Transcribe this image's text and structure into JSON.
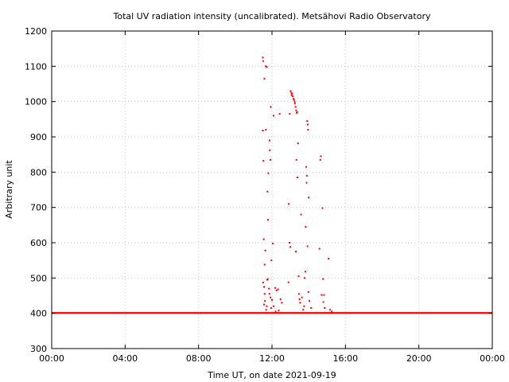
{
  "chart_data": {
    "type": "scatter",
    "title": "Total UV radiation intensity (uncalibrated). Metsähovi Radio Observatory",
    "xlabel": "Time UT, on date 2021-09-19",
    "ylabel": "Arbitrary unit",
    "xlim": [
      "00:00",
      "24:00"
    ],
    "ylim": [
      300,
      1200
    ],
    "x_ticks": [
      "00:00",
      "04:00",
      "08:00",
      "12:00",
      "16:00",
      "20:00",
      "00:00"
    ],
    "y_ticks": [
      "300",
      "400",
      "500",
      "600",
      "700",
      "800",
      "900",
      "1000",
      "1100",
      "1200"
    ],
    "grid": true,
    "legend": "none",
    "colors": {
      "points": "#ff0000",
      "axes": "#000000",
      "grid": "#cccccc"
    },
    "series": [
      {
        "baseline": {
          "value": 401,
          "x_range": [
            "00:00",
            "24:00"
          ]
        },
        "points": [
          [
            "11:30",
            1125
          ],
          [
            "11:31",
            1115
          ],
          [
            "11:35",
            1065
          ],
          [
            "11:39",
            1100
          ],
          [
            "11:43",
            1098
          ],
          [
            "11:30",
            918
          ],
          [
            "11:32",
            832
          ],
          [
            "11:40",
            920
          ],
          [
            "11:45",
            745
          ],
          [
            "11:48",
            797
          ],
          [
            "11:52",
            890
          ],
          [
            "11:53",
            862
          ],
          [
            "11:56",
            985
          ],
          [
            "11:55",
            835
          ],
          [
            "12:05",
            960
          ],
          [
            "12:25",
            965
          ],
          [
            "11:33",
            610
          ],
          [
            "11:38",
            578
          ],
          [
            "11:36",
            538
          ],
          [
            "11:47",
            665
          ],
          [
            "11:58",
            550
          ],
          [
            "12:03",
            598
          ],
          [
            "11:31",
            487
          ],
          [
            "11:34",
            475
          ],
          [
            "11:36",
            455
          ],
          [
            "11:44",
            495
          ],
          [
            "11:46",
            497
          ],
          [
            "11:50",
            470
          ],
          [
            "11:52",
            455
          ],
          [
            "11:55",
            445
          ],
          [
            "12:00",
            438
          ],
          [
            "12:05",
            420
          ],
          [
            "12:10",
            472
          ],
          [
            "12:15",
            465
          ],
          [
            "12:20",
            468
          ],
          [
            "12:28",
            440
          ],
          [
            "12:32",
            430
          ],
          [
            "11:34",
            425
          ],
          [
            "11:37",
            435
          ],
          [
            "11:41",
            410
          ],
          [
            "11:43",
            420
          ],
          [
            "11:57",
            415
          ],
          [
            "12:12",
            405
          ],
          [
            "12:22",
            408
          ],
          [
            "13:01",
            1030
          ],
          [
            "13:03",
            1025
          ],
          [
            "13:04",
            1018
          ],
          [
            "13:06",
            1022
          ],
          [
            "13:08",
            1015
          ],
          [
            "13:10",
            1008
          ],
          [
            "13:12",
            1005
          ],
          [
            "13:14",
            1000
          ],
          [
            "13:15",
            995
          ],
          [
            "13:17",
            985
          ],
          [
            "13:19",
            975
          ],
          [
            "13:21",
            968
          ],
          [
            "12:58",
            965
          ],
          [
            "13:22",
            970
          ],
          [
            "13:25",
            882
          ],
          [
            "13:23",
            785
          ],
          [
            "13:20",
            835
          ],
          [
            "12:55",
            710
          ],
          [
            "12:57",
            600
          ],
          [
            "13:00",
            588
          ],
          [
            "12:54",
            488
          ],
          [
            "13:18",
            575
          ],
          [
            "13:27",
            505
          ],
          [
            "13:28",
            455
          ],
          [
            "13:30",
            440
          ],
          [
            "13:32",
            430
          ],
          [
            "13:35",
            680
          ],
          [
            "13:38",
            445
          ],
          [
            "13:42",
            410
          ],
          [
            "13:45",
            420
          ],
          [
            "13:55",
            945
          ],
          [
            "13:57",
            935
          ],
          [
            "13:58",
            920
          ],
          [
            "13:52",
            815
          ],
          [
            "13:54",
            790
          ],
          [
            "13:53",
            770
          ],
          [
            "14:00",
            728
          ],
          [
            "13:50",
            645
          ],
          [
            "13:56",
            590
          ],
          [
            "13:49",
            518
          ],
          [
            "13:47",
            500
          ],
          [
            "13:59",
            460
          ],
          [
            "14:02",
            435
          ],
          [
            "14:08",
            415
          ],
          [
            "14:40",
            845
          ],
          [
            "14:38",
            835
          ],
          [
            "14:45",
            698
          ],
          [
            "14:35",
            583
          ],
          [
            "14:47",
            497
          ],
          [
            "14:42",
            452
          ],
          [
            "14:50",
            452
          ],
          [
            "14:48",
            432
          ],
          [
            "14:52",
            415
          ],
          [
            "15:05",
            555
          ],
          [
            "15:10",
            410
          ],
          [
            "15:15",
            405
          ]
        ]
      }
    ]
  }
}
